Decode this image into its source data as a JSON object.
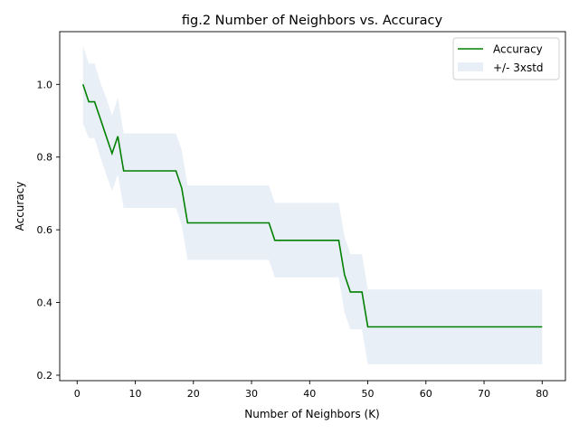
{
  "chart_data": {
    "type": "line",
    "title": "fig.2 Number of Neighbors vs. Accuracy",
    "xlabel": "Number of Neighbors (K)",
    "ylabel": "Accuracy",
    "xlim": [
      -3,
      84
    ],
    "ylim": [
      0.185,
      1.145
    ],
    "xticks": [
      0,
      10,
      20,
      30,
      40,
      50,
      60,
      70,
      80
    ],
    "yticks": [
      0.2,
      0.4,
      0.6,
      0.8,
      1.0
    ],
    "xtick_labels": [
      "0",
      "10",
      "20",
      "30",
      "40",
      "50",
      "60",
      "70",
      "80"
    ],
    "ytick_labels": [
      "0.2",
      "0.4",
      "0.6",
      "0.8",
      "1.0"
    ],
    "grid": false,
    "legend_position": "top-right",
    "legend": [
      "Accuracy",
      "+/- 3xstd"
    ],
    "line_color": "#008000",
    "band_color": "#e8eff7",
    "k": [
      1,
      2,
      3,
      4,
      5,
      6,
      7,
      8,
      9,
      10,
      11,
      12,
      13,
      14,
      15,
      16,
      17,
      18,
      19,
      20,
      21,
      22,
      23,
      24,
      25,
      26,
      27,
      28,
      29,
      30,
      31,
      32,
      33,
      34,
      35,
      36,
      37,
      38,
      39,
      40,
      41,
      42,
      43,
      44,
      45,
      46,
      47,
      48,
      49,
      50,
      51,
      52,
      53,
      54,
      55,
      56,
      57,
      58,
      59,
      60,
      61,
      62,
      63,
      64,
      65,
      66,
      67,
      68,
      69,
      70,
      71,
      72,
      73,
      74,
      75,
      76,
      77,
      78,
      79,
      80
    ],
    "accuracy": [
      1.0,
      0.952,
      0.952,
      0.905,
      0.857,
      0.81,
      0.857,
      0.762,
      0.762,
      0.762,
      0.762,
      0.762,
      0.762,
      0.762,
      0.762,
      0.762,
      0.762,
      0.714,
      0.619,
      0.619,
      0.619,
      0.619,
      0.619,
      0.619,
      0.619,
      0.619,
      0.619,
      0.619,
      0.619,
      0.619,
      0.619,
      0.619,
      0.619,
      0.571,
      0.571,
      0.571,
      0.571,
      0.571,
      0.571,
      0.571,
      0.571,
      0.571,
      0.571,
      0.571,
      0.571,
      0.476,
      0.429,
      0.429,
      0.429,
      0.333,
      0.333,
      0.333,
      0.333,
      0.333,
      0.333,
      0.333,
      0.333,
      0.333,
      0.333,
      0.333,
      0.333,
      0.333,
      0.333,
      0.333,
      0.333,
      0.333,
      0.333,
      0.333,
      0.333,
      0.333,
      0.333,
      0.333,
      0.333,
      0.333,
      0.333,
      0.333,
      0.333,
      0.333,
      0.333,
      0.333
    ],
    "band_lower": [
      0.893,
      0.852,
      0.852,
      0.8,
      0.752,
      0.707,
      0.752,
      0.66,
      0.66,
      0.66,
      0.66,
      0.66,
      0.66,
      0.66,
      0.66,
      0.66,
      0.66,
      0.612,
      0.517,
      0.517,
      0.517,
      0.517,
      0.517,
      0.517,
      0.517,
      0.517,
      0.517,
      0.517,
      0.517,
      0.517,
      0.517,
      0.517,
      0.517,
      0.469,
      0.469,
      0.469,
      0.469,
      0.469,
      0.469,
      0.469,
      0.469,
      0.469,
      0.469,
      0.469,
      0.469,
      0.372,
      0.326,
      0.326,
      0.326,
      0.23,
      0.23,
      0.23,
      0.23,
      0.23,
      0.23,
      0.23,
      0.23,
      0.23,
      0.23,
      0.23,
      0.23,
      0.23,
      0.23,
      0.23,
      0.23,
      0.23,
      0.23,
      0.23,
      0.23,
      0.23,
      0.23,
      0.23,
      0.23,
      0.23,
      0.23,
      0.23,
      0.23,
      0.23,
      0.23,
      0.23
    ],
    "band_upper": [
      1.107,
      1.057,
      1.057,
      1.005,
      0.963,
      0.914,
      0.963,
      0.865,
      0.865,
      0.865,
      0.865,
      0.865,
      0.865,
      0.865,
      0.865,
      0.865,
      0.865,
      0.818,
      0.722,
      0.722,
      0.722,
      0.722,
      0.722,
      0.722,
      0.722,
      0.722,
      0.722,
      0.722,
      0.722,
      0.722,
      0.722,
      0.722,
      0.722,
      0.674,
      0.674,
      0.674,
      0.674,
      0.674,
      0.674,
      0.674,
      0.674,
      0.674,
      0.674,
      0.674,
      0.674,
      0.581,
      0.533,
      0.533,
      0.533,
      0.436,
      0.436,
      0.436,
      0.436,
      0.436,
      0.436,
      0.436,
      0.436,
      0.436,
      0.436,
      0.436,
      0.436,
      0.436,
      0.436,
      0.436,
      0.436,
      0.436,
      0.436,
      0.436,
      0.436,
      0.436,
      0.436,
      0.436,
      0.436,
      0.436,
      0.436,
      0.436,
      0.436,
      0.436,
      0.436,
      0.436
    ]
  }
}
